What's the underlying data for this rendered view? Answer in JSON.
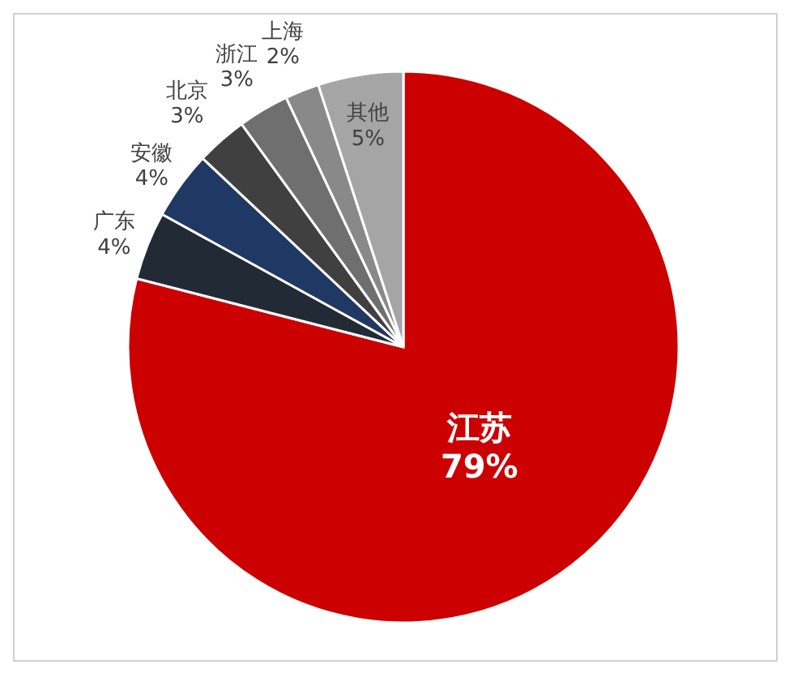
{
  "chart_data": {
    "type": "pie",
    "categories": [
      "江苏",
      "广东",
      "安徽",
      "北京",
      "浙江",
      "上海",
      "其他"
    ],
    "values": [
      79,
      4,
      4,
      3,
      3,
      2,
      5
    ],
    "colors": [
      "#cc0000",
      "#222a35",
      "#203864",
      "#404040",
      "#6f6f6f",
      "#898989",
      "#a5a5a5"
    ],
    "value_labels": [
      "79%",
      "4%",
      "4%",
      "3%",
      "3%",
      "2%",
      "5%"
    ],
    "legend": false
  }
}
